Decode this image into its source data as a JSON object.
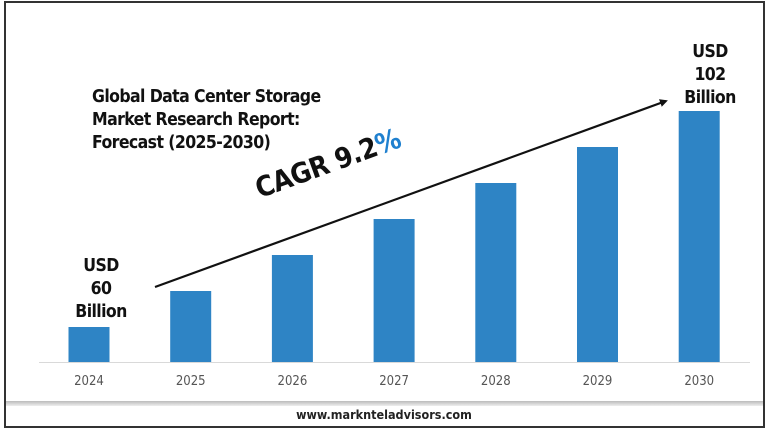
{
  "chart_data": {
    "type": "bar",
    "title": "Global Data Center Storage Market Research Report: Forecast (2025-2030)",
    "title_lines": [
      "Global Data Center Storage",
      "Market Research Report:",
      "Forecast (2025-2030)"
    ],
    "categories": [
      "2024",
      "2025",
      "2026",
      "2027",
      "2028",
      "2029",
      "2030"
    ],
    "values": [
      1,
      2,
      3,
      4,
      5,
      6,
      7
    ],
    "value_note_visible": false,
    "annotations": {
      "start": [
        "USD",
        "60",
        "Billion"
      ],
      "end": [
        "USD",
        "102",
        "Billion"
      ],
      "cagr_text": "CAGR 9.2",
      "cagr_symbol": "%"
    },
    "xlabel": "",
    "ylabel": "",
    "grid": false,
    "legend": "none",
    "colors": {
      "bar": "#2e84c5",
      "percent": "#1f80cf",
      "arrow": "#111111"
    }
  },
  "footer": {
    "url": "www.marknteladvisors.com"
  }
}
